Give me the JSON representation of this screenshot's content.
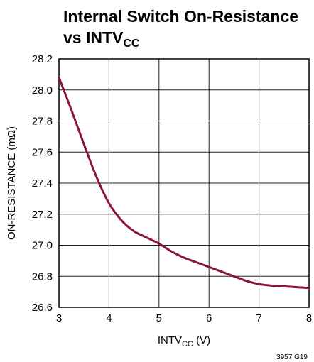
{
  "chart_data": {
    "type": "line",
    "title": {
      "line1": "Internal Switch On-Resistance",
      "line2_main": "vs INTV",
      "line2_sub": "CC"
    },
    "xlabel": {
      "main": "INTV",
      "sub": "CC",
      "suffix": " (V)"
    },
    "ylabel": "ON-RESISTANCE (mΩ)",
    "xlim": [
      3,
      8
    ],
    "ylim": [
      26.6,
      28.2
    ],
    "x_ticks": [
      "3",
      "4",
      "5",
      "6",
      "7",
      "8"
    ],
    "y_ticks": [
      "26.6",
      "26.8",
      "27.0",
      "27.2",
      "27.4",
      "27.6",
      "27.8",
      "28.0",
      "28.2"
    ],
    "grid": true,
    "figure_code": "3957 G19",
    "series": [
      {
        "color": "#8b1538",
        "x": [
          3.0,
          3.25,
          3.5,
          3.75,
          4.0,
          4.25,
          4.5,
          4.75,
          5.0,
          5.25,
          5.5,
          5.75,
          6.0,
          6.25,
          6.5,
          6.75,
          7.0,
          7.25,
          7.5,
          7.75,
          8.0
        ],
        "y": [
          28.08,
          27.87,
          27.65,
          27.44,
          27.27,
          27.16,
          27.09,
          27.05,
          27.01,
          26.96,
          26.92,
          26.89,
          26.86,
          26.83,
          26.8,
          26.77,
          26.75,
          26.74,
          26.735,
          26.73,
          26.725
        ]
      }
    ]
  }
}
